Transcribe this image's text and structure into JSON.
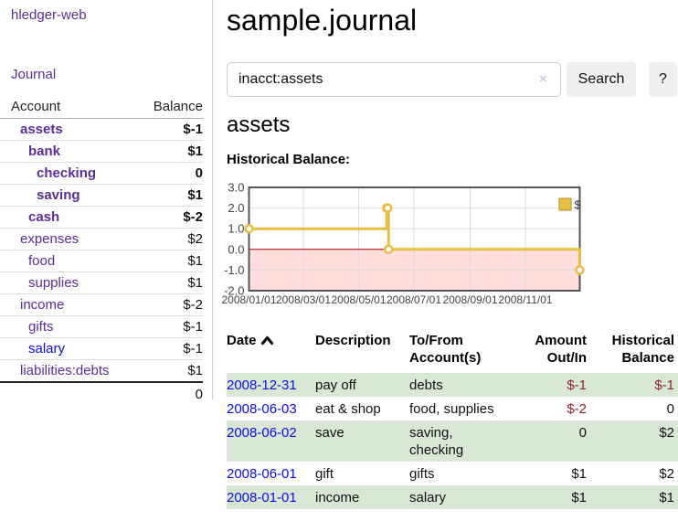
{
  "app": {
    "brand": "hledger-web",
    "nav_journal": "Journal"
  },
  "sidebar": {
    "header": {
      "account": "Account",
      "balance": "Balance"
    },
    "accounts": [
      {
        "name": "assets",
        "balance": "$-1",
        "depth": 0,
        "in_account": true
      },
      {
        "name": "bank",
        "balance": "$1",
        "depth": 1,
        "in_account": true
      },
      {
        "name": "checking",
        "balance": "0",
        "depth": 2,
        "in_account": true
      },
      {
        "name": "saving",
        "balance": "$1",
        "depth": 2,
        "in_account": true
      },
      {
        "name": "cash",
        "balance": "$-2",
        "depth": 1,
        "in_account": true
      },
      {
        "name": "expenses",
        "balance": "$2",
        "depth": 0,
        "in_account": false
      },
      {
        "name": "food",
        "balance": "$1",
        "depth": 1,
        "in_account": false
      },
      {
        "name": "supplies",
        "balance": "$1",
        "depth": 1,
        "in_account": false
      },
      {
        "name": "income",
        "balance": "$-2",
        "depth": 0,
        "in_account": false
      },
      {
        "name": "gifts",
        "balance": "$-1",
        "depth": 1,
        "in_account": false
      },
      {
        "name": "salary",
        "balance": "$-1",
        "depth": 1,
        "in_account": false
      },
      {
        "name": "liabilities:debts",
        "balance": "$1",
        "depth": 0,
        "in_account": false
      }
    ],
    "total": "0"
  },
  "header": {
    "title": "sample.journal"
  },
  "search": {
    "value": "inacct:assets",
    "clear_icon": "×",
    "button_label": "Search",
    "help_label": "?"
  },
  "register": {
    "account_title": "assets",
    "chart_label": "Historical Balance:",
    "table_headers": {
      "date": "Date",
      "description": "Description",
      "accounts": "To/From Account(s)",
      "amount": "Amount Out/In",
      "balance": "Historical Balance"
    },
    "sort_icon": "chevron-up",
    "rows": [
      {
        "date": "2008-12-31",
        "description": "pay off",
        "accounts": "debts",
        "amount": "$-1",
        "balance": "$-1"
      },
      {
        "date": "2008-06-03",
        "description": "eat & shop",
        "accounts": "food, supplies",
        "amount": "$-2",
        "balance": "0"
      },
      {
        "date": "2008-06-02",
        "description": "save",
        "accounts": "saving, checking",
        "amount": "0",
        "balance": "$2"
      },
      {
        "date": "2008-06-01",
        "description": "gift",
        "accounts": "gifts",
        "amount": "$1",
        "balance": "$2"
      },
      {
        "date": "2008-01-01",
        "description": "income",
        "accounts": "salary",
        "amount": "$1",
        "balance": "$1"
      }
    ]
  },
  "chart_data": {
    "type": "line",
    "title": "Historical Balance",
    "step": true,
    "xlim": [
      "2008-01-01",
      "2008-12-31"
    ],
    "ylim": [
      -2.0,
      3.0
    ],
    "x_ticks": [
      "2008/01/01",
      "2008/03/01",
      "2008/05/01",
      "2008/07/01",
      "2008/09/01",
      "2008/11/01"
    ],
    "y_ticks": [
      3.0,
      2.0,
      1.0,
      0.0,
      -1.0,
      -2.0
    ],
    "grid": true,
    "legend_position": "top-right",
    "series": [
      {
        "name": "$",
        "color": "#e6bf45",
        "points": [
          [
            "2008-01-01",
            1
          ],
          [
            "2008-06-01",
            2
          ],
          [
            "2008-06-02",
            2
          ],
          [
            "2008-06-03",
            0
          ],
          [
            "2008-12-31",
            -1
          ]
        ]
      }
    ],
    "negative_region_fill": "#ffdddd",
    "zero_line_color": "#aa0000",
    "border_color": "#545454",
    "grid_color": "#dcdcdc"
  },
  "colors": {
    "accent_purple": "#5b2d96",
    "link_blue": "#0d0de8",
    "negative_red": "#8f212c",
    "negative_muted_red": "#bb7272",
    "row_stripe_green": "#d8e8d4",
    "button_gray": "#efefef"
  }
}
